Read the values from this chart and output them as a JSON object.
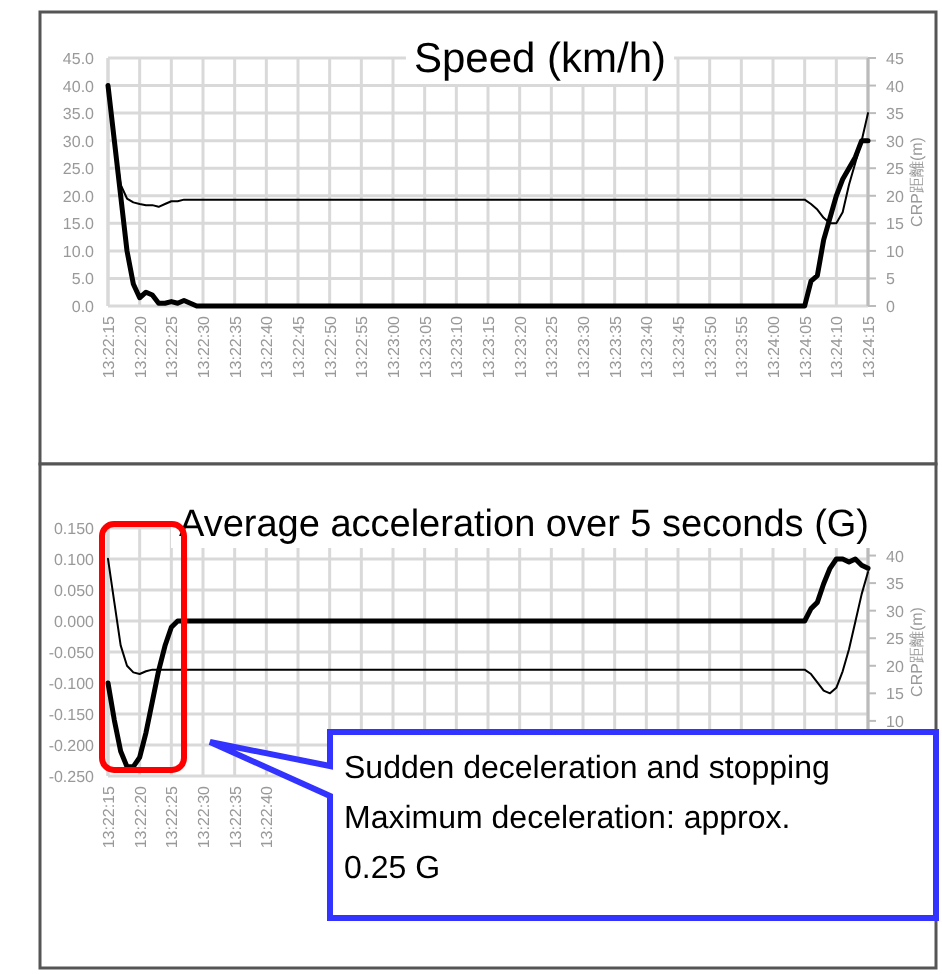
{
  "chart_data": [
    {
      "type": "line",
      "title": "Speed (km/h)",
      "y2label": "CRP距離(m)",
      "grid": true,
      "marker": "none",
      "line_style": "solid",
      "categories": [
        "13:22:15",
        null,
        null,
        null,
        null,
        "13:22:20",
        null,
        null,
        null,
        null,
        "13:22:25",
        null,
        null,
        null,
        null,
        "13:22:30",
        null,
        null,
        null,
        null,
        "13:22:35",
        null,
        null,
        null,
        null,
        "13:22:40",
        null,
        null,
        null,
        null,
        "13:22:45",
        null,
        null,
        null,
        null,
        "13:22:50",
        null,
        null,
        null,
        null,
        "13:22:55",
        null,
        null,
        null,
        null,
        "13:23:00",
        null,
        null,
        null,
        null,
        "13:23:05",
        null,
        null,
        null,
        null,
        "13:23:10",
        null,
        null,
        null,
        null,
        "13:23:15",
        null,
        null,
        null,
        null,
        "13:23:20",
        null,
        null,
        null,
        null,
        "13:23:25",
        null,
        null,
        null,
        null,
        "13:23:30",
        null,
        null,
        null,
        null,
        "13:23:35",
        null,
        null,
        null,
        null,
        "13:23:40",
        null,
        null,
        null,
        null,
        "13:23:45",
        null,
        null,
        null,
        null,
        "13:23:50",
        null,
        null,
        null,
        null,
        "13:23:55",
        null,
        null,
        null,
        null,
        "13:24:00",
        null,
        null,
        null,
        null,
        "13:24:05",
        null,
        null,
        null,
        null,
        "13:24:10",
        null,
        null,
        null,
        null,
        "13:24:15"
      ],
      "ylim": [
        0,
        45
      ],
      "yticks": [
        {
          "value": 0,
          "label": "0.0"
        },
        {
          "value": 5,
          "label": "5.0"
        },
        {
          "value": 10,
          "label": "10.0"
        },
        {
          "value": 15,
          "label": "15.0"
        },
        {
          "value": 20,
          "label": "20.0"
        },
        {
          "value": 25,
          "label": "25.0"
        },
        {
          "value": 30,
          "label": "30.0"
        },
        {
          "value": 35,
          "label": "35.0"
        },
        {
          "value": 40,
          "label": "40.0"
        },
        {
          "value": 45,
          "label": "45.0"
        }
      ],
      "y2lim": [
        0,
        45
      ],
      "y2ticks": [
        0,
        5,
        10,
        15,
        20,
        25,
        30,
        35,
        40,
        45
      ],
      "series": [
        {
          "color": "#000000",
          "axis": "y",
          "values": [
            40,
            30,
            20,
            10,
            4,
            1.5,
            2.5,
            2,
            0.5,
            0.5,
            0.8,
            0.5,
            1,
            0.5,
            0,
            0,
            0,
            0,
            0,
            0,
            0,
            0,
            0,
            0,
            0,
            0,
            0,
            0,
            0,
            0,
            0,
            0,
            0,
            0,
            0,
            0,
            0,
            0,
            0,
            0,
            0,
            0,
            0,
            0,
            0,
            0,
            0,
            0,
            0,
            0,
            0,
            0,
            0,
            0,
            0,
            0,
            0,
            0,
            0,
            0,
            0,
            0,
            0,
            0,
            0,
            0,
            0,
            0,
            0,
            0,
            0,
            0,
            0,
            0,
            0,
            0,
            0,
            0,
            0,
            0,
            0,
            0,
            0,
            0,
            0,
            0,
            0,
            0,
            0,
            0,
            0,
            0,
            0,
            0,
            0,
            0,
            0,
            0,
            0,
            0,
            0,
            0,
            0,
            0,
            0,
            0,
            0,
            0,
            0,
            0,
            0,
            4.5,
            5.5,
            12,
            16,
            20,
            23,
            25,
            27,
            30,
            30
          ]
        },
        {
          "color": "#000000",
          "axis": "y2",
          "values": [
            40,
            30,
            22,
            19.5,
            18.8,
            18.5,
            18.3,
            18.3,
            18,
            18.5,
            19,
            19,
            19.3,
            19.3,
            19.3,
            19.3,
            19.3,
            19.3,
            19.3,
            19.3,
            19.3,
            19.3,
            19.3,
            19.3,
            19.3,
            19.3,
            19.3,
            19.3,
            19.3,
            19.3,
            19.3,
            19.3,
            19.3,
            19.3,
            19.3,
            19.3,
            19.3,
            19.3,
            19.3,
            19.3,
            19.3,
            19.3,
            19.3,
            19.3,
            19.3,
            19.3,
            19.3,
            19.3,
            19.3,
            19.3,
            19.3,
            19.3,
            19.3,
            19.3,
            19.3,
            19.3,
            19.3,
            19.3,
            19.3,
            19.3,
            19.3,
            19.3,
            19.3,
            19.3,
            19.3,
            19.3,
            19.3,
            19.3,
            19.3,
            19.3,
            19.3,
            19.3,
            19.3,
            19.3,
            19.3,
            19.3,
            19.3,
            19.3,
            19.3,
            19.3,
            19.3,
            19.3,
            19.3,
            19.3,
            19.3,
            19.3,
            19.3,
            19.3,
            19.3,
            19.3,
            19.3,
            19.3,
            19.3,
            19.3,
            19.3,
            19.3,
            19.3,
            19.3,
            19.3,
            19.3,
            19.3,
            19.3,
            19.3,
            19.3,
            19.3,
            19.3,
            19.3,
            19.3,
            19.3,
            19.3,
            19.3,
            18.5,
            17.5,
            16,
            15,
            15,
            17,
            22,
            26,
            30,
            35
          ]
        }
      ]
    },
    {
      "type": "line",
      "title": "Average acceleration over 5 seconds (G)",
      "y2label": "CRP距離(m)",
      "grid": true,
      "marker": "none",
      "line_style": "solid",
      "annotations": [
        "Sudden deceleration and stopping\nMaximum deceleration: approx.\n0.25 G"
      ],
      "categories": [
        "13:22:15",
        null,
        null,
        null,
        null,
        "13:22:20",
        null,
        null,
        null,
        null,
        "13:22:25",
        null,
        null,
        null,
        null,
        "13:22:30",
        null,
        null,
        null,
        null,
        "13:22:35",
        null,
        null,
        null,
        null,
        "13:22:40",
        null,
        null,
        null,
        null,
        null,
        null,
        null,
        null,
        null,
        null,
        null,
        null,
        null,
        null,
        null,
        null,
        null,
        null,
        null,
        null,
        null,
        null,
        null,
        null,
        null,
        null,
        null,
        null,
        null,
        null,
        null,
        null,
        null,
        null,
        null,
        null,
        null,
        null,
        null,
        null,
        null,
        null,
        null,
        null,
        null,
        null,
        null,
        null,
        null,
        null,
        null,
        null,
        null,
        null,
        null,
        null,
        null,
        null,
        null,
        null,
        null,
        null,
        null,
        null,
        null,
        null,
        null,
        null,
        null,
        null,
        null,
        null,
        null,
        null,
        null,
        null,
        null,
        null,
        null,
        null,
        null,
        null,
        null,
        null,
        null,
        null,
        null,
        null,
        null,
        null,
        null,
        null,
        null,
        null,
        null
      ],
      "ylim": [
        -0.25,
        0.15
      ],
      "yticks": [
        {
          "value": -0.25,
          "label": "-0.250"
        },
        {
          "value": -0.2,
          "label": "-0.200"
        },
        {
          "value": -0.15,
          "label": "-0.150"
        },
        {
          "value": -0.1,
          "label": "-0.100"
        },
        {
          "value": -0.05,
          "label": "-0.050"
        },
        {
          "value": 0,
          "label": "0.000"
        },
        {
          "value": 0.05,
          "label": "0.050"
        },
        {
          "value": 0.1,
          "label": "0.100"
        },
        {
          "value": 0.15,
          "label": "0.150"
        }
      ],
      "y2lim": [
        0,
        45
      ],
      "y2ticks": [
        10,
        15,
        20,
        25,
        30,
        35,
        40
      ],
      "series": [
        {
          "color": "#000000",
          "axis": "y",
          "values": [
            -0.1,
            -0.16,
            -0.21,
            -0.235,
            -0.235,
            -0.22,
            -0.18,
            -0.13,
            -0.08,
            -0.04,
            -0.01,
            0,
            0,
            0,
            0,
            0,
            0,
            0,
            0,
            0,
            0,
            0,
            0,
            0,
            0,
            0,
            0,
            0,
            0,
            0,
            0,
            0,
            0,
            0,
            0,
            0,
            0,
            0,
            0,
            0,
            0,
            0,
            0,
            0,
            0,
            0,
            0,
            0,
            0,
            0,
            0,
            0,
            0,
            0,
            0,
            0,
            0,
            0,
            0,
            0,
            0,
            0,
            0,
            0,
            0,
            0,
            0,
            0,
            0,
            0,
            0,
            0,
            0,
            0,
            0,
            0,
            0,
            0,
            0,
            0,
            0,
            0,
            0,
            0,
            0,
            0,
            0,
            0,
            0,
            0,
            0,
            0,
            0,
            0,
            0,
            0,
            0,
            0,
            0,
            0,
            0,
            0,
            0,
            0,
            0,
            0,
            0,
            0,
            0,
            0,
            0,
            0.02,
            0.03,
            0.06,
            0.085,
            0.1,
            0.1,
            0.095,
            0.1,
            0.09,
            0.085
          ]
        },
        {
          "color": "#000000",
          "axis": "y2",
          "values": [
            39.4,
            31.5,
            23.7,
            20,
            18.8,
            18.5,
            19,
            19.3,
            19.3,
            19.3,
            19.3,
            19.3,
            19.3,
            19.3,
            19.3,
            19.3,
            19.3,
            19.3,
            19.3,
            19.3,
            19.3,
            19.3,
            19.3,
            19.3,
            19.3,
            19.3,
            19.3,
            19.3,
            19.3,
            19.3,
            19.3,
            19.3,
            19.3,
            19.3,
            19.3,
            19.3,
            19.3,
            19.3,
            19.3,
            19.3,
            19.3,
            19.3,
            19.3,
            19.3,
            19.3,
            19.3,
            19.3,
            19.3,
            19.3,
            19.3,
            19.3,
            19.3,
            19.3,
            19.3,
            19.3,
            19.3,
            19.3,
            19.3,
            19.3,
            19.3,
            19.3,
            19.3,
            19.3,
            19.3,
            19.3,
            19.3,
            19.3,
            19.3,
            19.3,
            19.3,
            19.3,
            19.3,
            19.3,
            19.3,
            19.3,
            19.3,
            19.3,
            19.3,
            19.3,
            19.3,
            19.3,
            19.3,
            19.3,
            19.3,
            19.3,
            19.3,
            19.3,
            19.3,
            19.3,
            19.3,
            19.3,
            19.3,
            19.3,
            19.3,
            19.3,
            19.3,
            19.3,
            19.3,
            19.3,
            19.3,
            19.3,
            19.3,
            19.3,
            19.3,
            19.3,
            19.3,
            19.3,
            19.3,
            19.3,
            19.3,
            19.3,
            18.5,
            17,
            15.5,
            15,
            16,
            19,
            23,
            28,
            33,
            37
          ]
        }
      ]
    }
  ]
}
